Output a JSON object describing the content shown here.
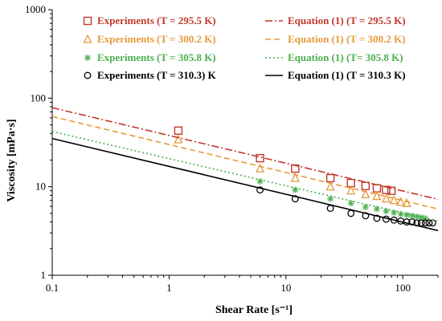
{
  "chart_data": {
    "type": "scatter",
    "xscale": "log",
    "yscale": "log",
    "xlim": [
      0.1,
      200
    ],
    "ylim": [
      1,
      1000
    ],
    "xlabel": "Shear Rate [s⁻¹]",
    "ylabel": "Viscosity [mPa·s]",
    "x_ticks": [
      "0.1",
      "1",
      "10",
      "100"
    ],
    "y_ticks": [
      "1",
      "10",
      "100",
      "1000"
    ],
    "legend_position": "top",
    "grid": false,
    "series": [
      {
        "name": "Experiments (T = 295.5 K)",
        "kind": "markers",
        "marker": "square",
        "color": "#c0392b",
        "x": [
          1.2,
          6,
          12,
          24,
          36,
          48,
          60,
          72,
          80
        ],
        "y": [
          43,
          21,
          16,
          12.5,
          11,
          10.2,
          9.6,
          9.2,
          9.0
        ]
      },
      {
        "name": "Experiments (T = 300.2 K)",
        "kind": "markers",
        "marker": "triangle",
        "color": "#e59a3a",
        "x": [
          1.2,
          6,
          12,
          24,
          36,
          48,
          60,
          72,
          84,
          96,
          108
        ],
        "y": [
          34,
          16,
          12.5,
          10,
          9,
          8.2,
          7.8,
          7.3,
          7.0,
          6.7,
          6.5
        ]
      },
      {
        "name": "Experiments (T = 305.8 K)",
        "kind": "markers",
        "marker": "asterisk",
        "color": "#4caf50",
        "x": [
          6,
          12,
          24,
          36,
          48,
          60,
          72,
          84,
          96,
          108,
          120,
          132,
          144,
          156
        ],
        "y": [
          11.5,
          9.2,
          7.3,
          6.5,
          5.9,
          5.6,
          5.3,
          5.1,
          4.9,
          4.8,
          4.7,
          4.6,
          4.5,
          4.4
        ]
      },
      {
        "name": "Experiments (T = 310.3) K",
        "kind": "markers",
        "marker": "circle",
        "color": "#000000",
        "x": [
          6,
          12,
          24,
          36,
          48,
          60,
          72,
          84,
          96,
          108,
          120,
          132,
          144,
          156,
          168,
          180
        ],
        "y": [
          9.2,
          7.3,
          5.7,
          5.0,
          4.7,
          4.4,
          4.3,
          4.2,
          4.1,
          4.0,
          4.0,
          3.9,
          3.9,
          3.9,
          3.9,
          3.9
        ]
      },
      {
        "name": "Equation (1) (T = 295.5 K)",
        "kind": "line",
        "dash": "dashdot",
        "color": "#c0392b",
        "x": [
          0.1,
          200
        ],
        "y": [
          78,
          7.2
        ]
      },
      {
        "name": "Equation (1) (T = 300.2 K)",
        "kind": "line",
        "dash": "dashed",
        "color": "#e59a3a",
        "x": [
          0.1,
          200
        ],
        "y": [
          62,
          5.6
        ]
      },
      {
        "name": "Equation (1) (T= 305.8 K)",
        "kind": "line",
        "dash": "dotted",
        "color": "#4caf50",
        "x": [
          0.1,
          200
        ],
        "y": [
          42,
          4.1
        ]
      },
      {
        "name": "Equation (1) (T = 310.3 K)",
        "kind": "line",
        "dash": "solid",
        "color": "#000000",
        "x": [
          0.1,
          200
        ],
        "y": [
          35,
          3.2
        ]
      }
    ]
  }
}
